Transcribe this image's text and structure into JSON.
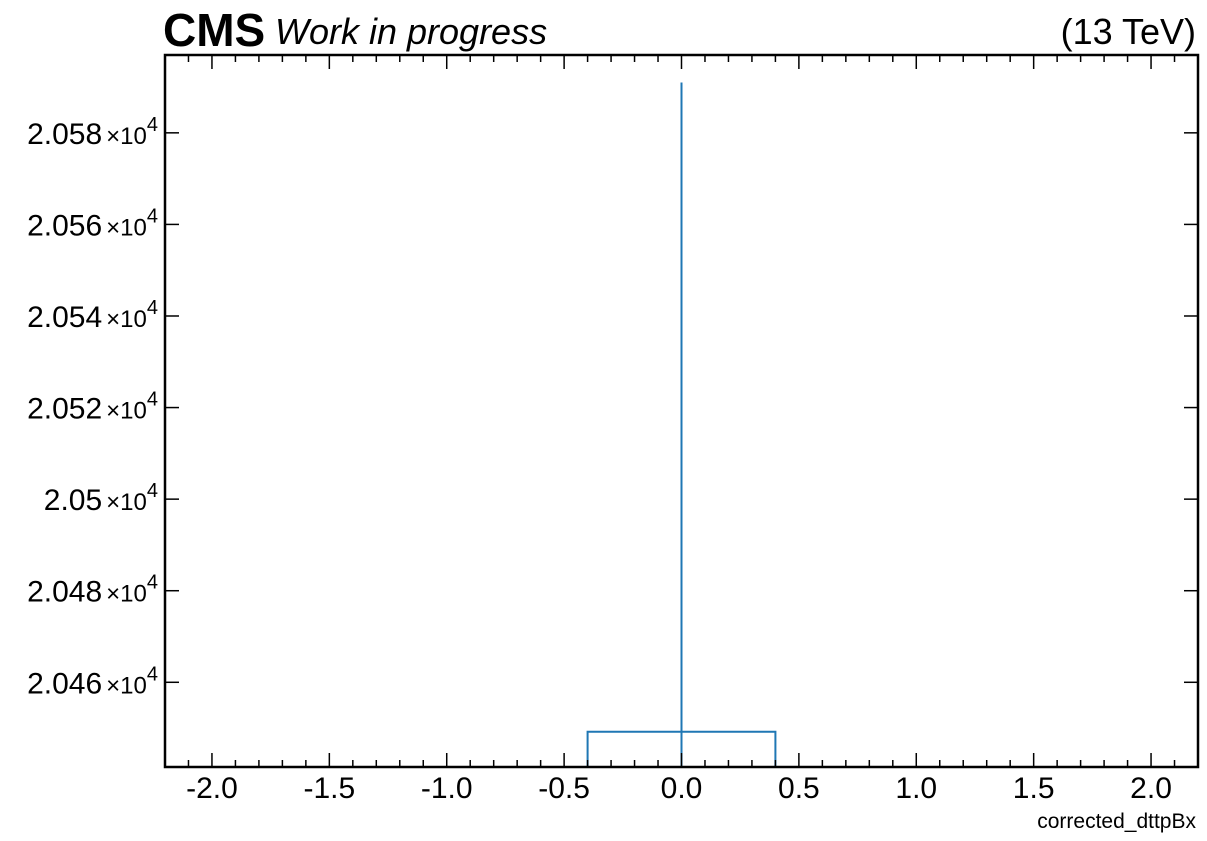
{
  "chart_data": {
    "type": "histogram",
    "header": {
      "experiment": "CMS",
      "status": "Work in progress",
      "energy": "(13 TeV)"
    },
    "xlabel": "corrected_dttpBx",
    "ylabel": "",
    "xlim": [
      -2.2,
      2.2
    ],
    "ylim": [
      20441.5,
      20597.0
    ],
    "x_ticks": [
      -2.0,
      -1.5,
      -1.0,
      -0.5,
      0.0,
      0.5,
      1.0,
      1.5,
      2.0
    ],
    "x_tick_labels": [
      "-2.0",
      "-1.5",
      "-1.0",
      "-0.5",
      "0.0",
      "0.5",
      "1.0",
      "1.5",
      "2.0"
    ],
    "y_ticks": [
      20460,
      20480,
      20500,
      20520,
      20540,
      20560,
      20580
    ],
    "y_tick_mantissas": [
      "2.046",
      "2.048",
      "2.05",
      "2.052",
      "2.054",
      "2.056",
      "2.058"
    ],
    "y_tick_exponent": "4",
    "y_tick_multiplier": "×10",
    "bins": [
      {
        "edges": [
          -0.4,
          0.4
        ],
        "value": 20449.2
      }
    ],
    "errorbar": {
      "x": 0.0,
      "y": 20449.2,
      "ylow": 20441.5,
      "yhigh": 20591.0
    },
    "grid": false,
    "colors": {
      "series": "#1f77b4",
      "axes": "#000000",
      "background": "#ffffff"
    }
  }
}
